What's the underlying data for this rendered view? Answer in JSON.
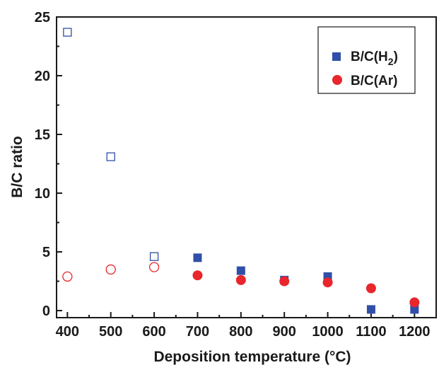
{
  "chart_data": {
    "type": "scatter",
    "xlabel": "Deposition temperature (°C)",
    "ylabel": "B/C ratio",
    "xlim": [
      375,
      1250
    ],
    "ylim": [
      -0.6,
      25
    ],
    "xticks": [
      400,
      500,
      600,
      700,
      800,
      900,
      1000,
      1100,
      1200
    ],
    "yticks": [
      0,
      5,
      10,
      15,
      20,
      25
    ],
    "legend_position": "top-right",
    "series": [
      {
        "name_main": "B/C(H",
        "name_sub": "2",
        "name_end": ")",
        "marker": "square",
        "color": "#2f4fa8",
        "points": [
          {
            "x": 400,
            "y": 23.7,
            "filled": false
          },
          {
            "x": 500,
            "y": 13.1,
            "filled": false
          },
          {
            "x": 600,
            "y": 4.6,
            "filled": false
          },
          {
            "x": 700,
            "y": 4.5,
            "filled": true
          },
          {
            "x": 800,
            "y": 3.4,
            "filled": true
          },
          {
            "x": 900,
            "y": 2.6,
            "filled": true
          },
          {
            "x": 1000,
            "y": 2.9,
            "filled": true
          },
          {
            "x": 1100,
            "y": 0.1,
            "filled": true
          },
          {
            "x": 1200,
            "y": 0.1,
            "filled": true
          }
        ]
      },
      {
        "name": "B/C(Ar)",
        "marker": "circle",
        "color": "#e8262b",
        "points": [
          {
            "x": 400,
            "y": 2.9,
            "filled": false
          },
          {
            "x": 500,
            "y": 3.5,
            "filled": false
          },
          {
            "x": 600,
            "y": 3.7,
            "filled": false
          },
          {
            "x": 700,
            "y": 3.0,
            "filled": true
          },
          {
            "x": 800,
            "y": 2.6,
            "filled": true
          },
          {
            "x": 900,
            "y": 2.5,
            "filled": true
          },
          {
            "x": 1000,
            "y": 2.4,
            "filled": true
          },
          {
            "x": 1100,
            "y": 1.9,
            "filled": true
          },
          {
            "x": 1200,
            "y": 0.7,
            "filled": true
          }
        ]
      }
    ]
  }
}
